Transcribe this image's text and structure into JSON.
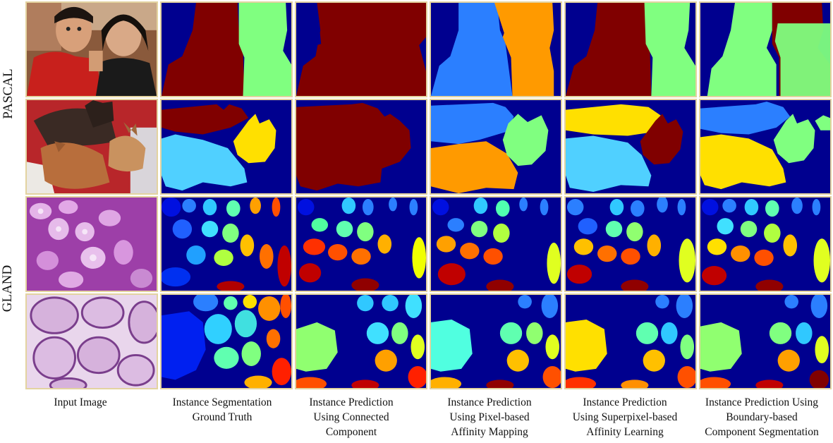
{
  "row_groups": [
    "PASCAL",
    "GLAND"
  ],
  "columns": [
    [
      "Input Image"
    ],
    [
      "Instance Segmentation",
      "Ground Truth"
    ],
    [
      "Instance Prediction",
      "Using Connected",
      "Component"
    ],
    [
      "Instance Prediction",
      "Using Pixel-based",
      "Affinity Mapping"
    ],
    [
      "Instance Prediction",
      "Using Superpixel-based",
      "Affinity Learning"
    ],
    [
      "Instance Prediction Using",
      "Boundary-based",
      "Component Segmentation"
    ]
  ],
  "colors": {
    "background": "#00008f",
    "maroon": "#800000",
    "green": "#80ff80",
    "blue": "#2b7fff",
    "orange": "#ff9a00",
    "yellow": "#ffe000",
    "cyan": "#50d0ff",
    "frame": "#e3d3a0"
  }
}
